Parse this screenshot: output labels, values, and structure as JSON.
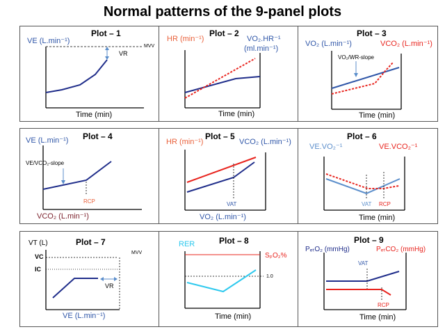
{
  "title": "Normal patterns of the 9-panel plots",
  "colors": {
    "dark_blue": "#1f2d8a",
    "blue": "#2f56a8",
    "light_blue": "#5b8ecb",
    "cyan": "#2ec9ee",
    "red": "#e8241e",
    "orange_red": "#e9603a",
    "maroon": "#7a1f2a",
    "black": "#000000"
  },
  "panels": [
    {
      "title": "Plot – 1",
      "left_label": "VE (L.min⁻¹)",
      "mvv_label": "MVV",
      "vr_label": "VR",
      "x_label": "Time (min)"
    },
    {
      "title": "Plot – 2",
      "left_label": "HR (min⁻¹)",
      "right_label_1": "VO₂.HR⁻¹",
      "right_label_2": "(ml.min⁻¹)",
      "x_label": "Time (min)"
    },
    {
      "title": "Plot – 3",
      "left_label": "VO₂ (L.min⁻¹)",
      "right_label": "VCO₂ (L.min⁻¹)",
      "annotation": "VO₂/WR-slope",
      "x_label": "Time (min)"
    },
    {
      "title": "Plot – 4",
      "left_label": "VE (L.min⁻¹)",
      "annotation": "VE/VCO₂-slope",
      "rcp_label": "RCP",
      "x_label": "VCO₂ (L.min⁻¹)"
    },
    {
      "title": "Plot – 5",
      "left_label": "HR (min⁻¹)",
      "right_label": "VCO₂ (L.min⁻¹)",
      "vat_label": "VAT",
      "x_label": "VO₂ (L.min⁻¹)"
    },
    {
      "title": "Plot – 6",
      "left_label": "VE.VO₂⁻¹",
      "right_label": "VE.VCO₂⁻¹",
      "vat_label": "VAT",
      "rcp_label": "RCP",
      "x_label": "Time (min)"
    },
    {
      "title": "Plot – 7",
      "left_label": "VT (L)",
      "vc_label": "VC",
      "ic_label": "IC",
      "mvv_label": "MVV",
      "vr_label": "VR",
      "x_label": "VE (L.min⁻¹)"
    },
    {
      "title": "Plot – 8",
      "left_label": "RER",
      "right_label": "SₚO₂%",
      "ref_label": "1.0",
      "x_label": "Time (min)"
    },
    {
      "title": "Plot – 9",
      "left_label": "PₑₜO₂ (mmHg)",
      "right_label": "PₑₜCO₂ (mmHg)",
      "vat_label": "VAT",
      "rcp_label": "RCP",
      "x_label": "Time (min)"
    }
  ]
}
